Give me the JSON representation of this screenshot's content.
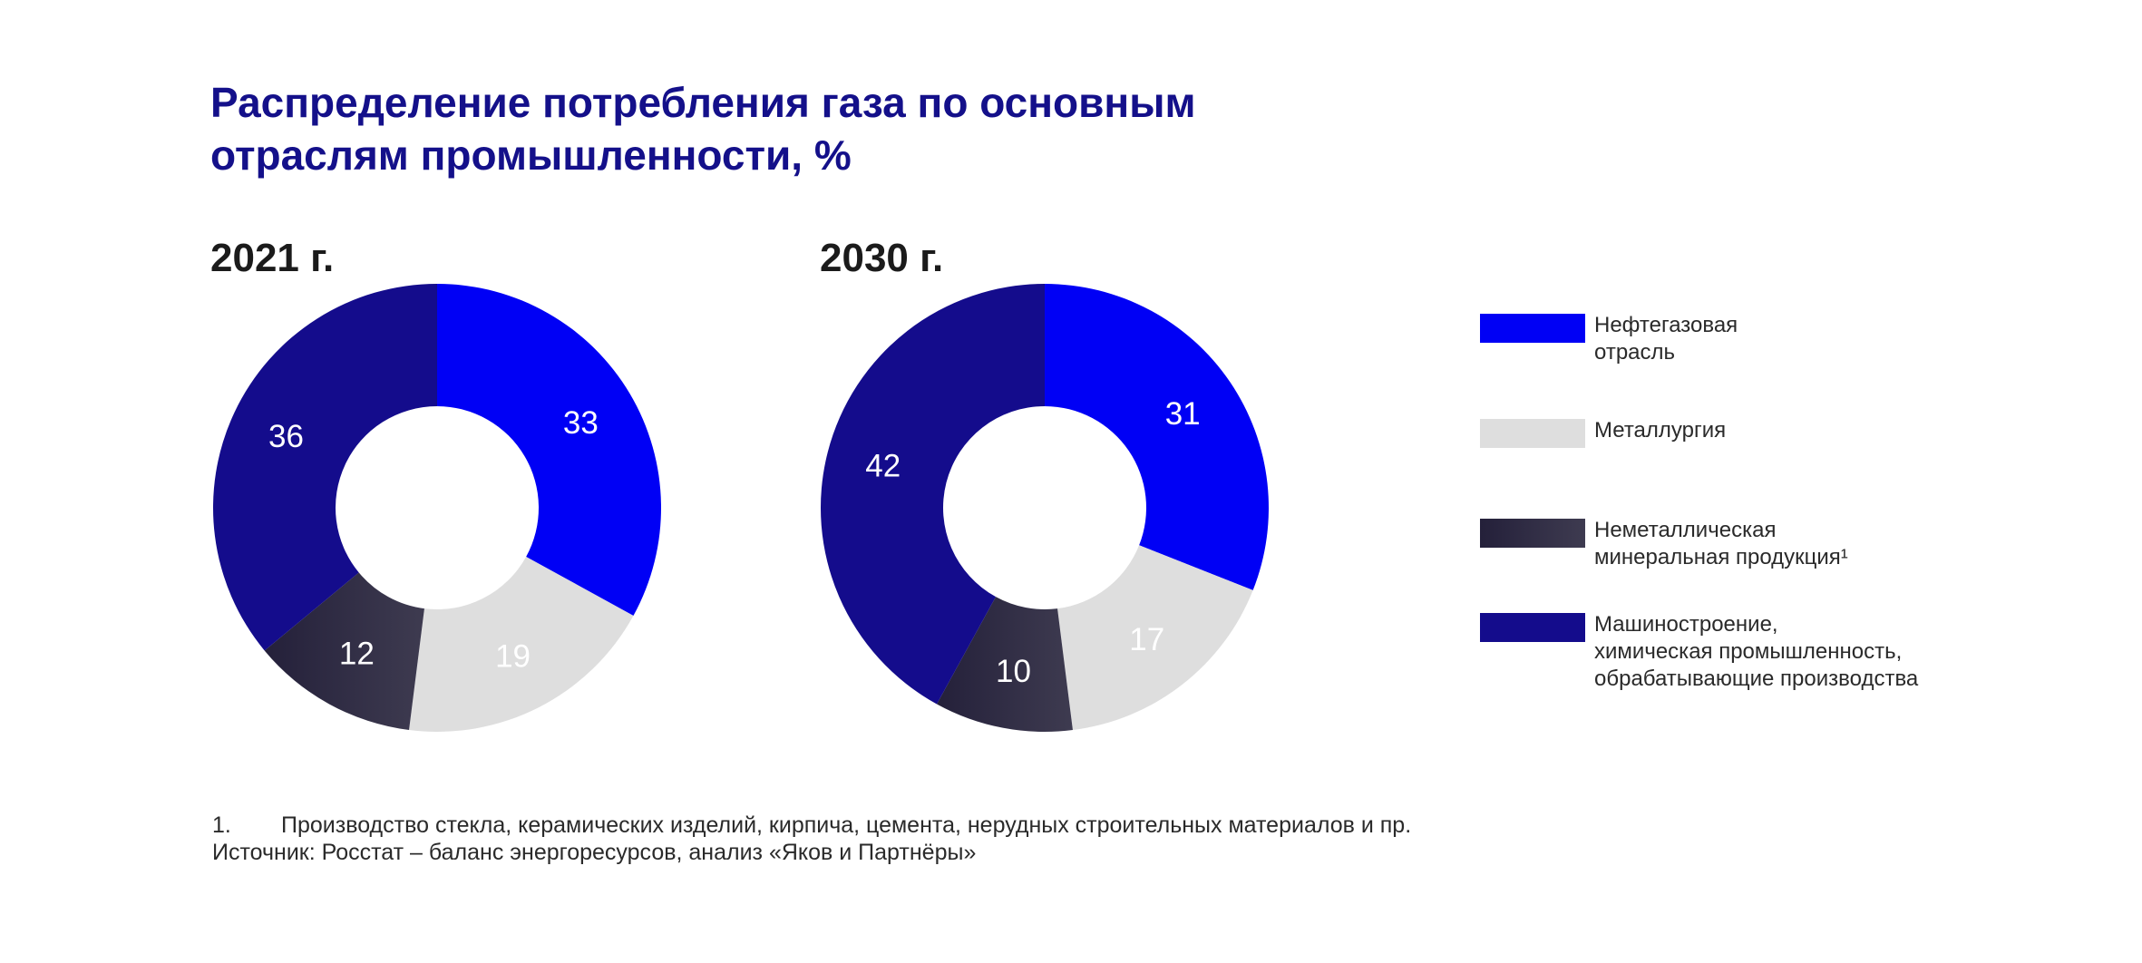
{
  "title": "Распределение потребления газа по основным отраслям промышленности, %",
  "colors": {
    "title": "#14108a",
    "oil_gas": "#0000f5",
    "metallurgy": "#dedede",
    "nonmetallic_start": "#24203a",
    "nonmetallic_end": "#3e3b50",
    "machinery": "#140c8c"
  },
  "chart_data": [
    {
      "type": "pie",
      "title": "2021 г.",
      "categories": [
        "Нефтегазовая отрасль",
        "Металлургия",
        "Неметаллическая минеральная продукция¹",
        "Машиностроение, химическая промышленность, обрабатывающие производства"
      ],
      "values": [
        33,
        19,
        12,
        36
      ],
      "labels": [
        "33",
        "19",
        "12",
        "36"
      ]
    },
    {
      "type": "pie",
      "title": "2030 г.",
      "categories": [
        "Нефтегазовая отрасль",
        "Металлургия",
        "Неметаллическая минеральная продукция¹",
        "Машиностроение, химическая промышленность, обрабатывающие производства"
      ],
      "values": [
        31,
        17,
        10,
        42
      ],
      "labels": [
        "31",
        "17",
        "10",
        "42"
      ]
    }
  ],
  "legend": [
    {
      "label": "Нефтегазовая\nотрасль",
      "color_key": "oil_gas"
    },
    {
      "label": "Металлургия",
      "color_key": "metallurgy"
    },
    {
      "label": "Неметаллическая\nминеральная продукция¹",
      "color_key": "nonmetallic"
    },
    {
      "label": "Машиностроение,\nхимическая промышленность,\nобрабатывающие производства",
      "color_key": "machinery"
    }
  ],
  "footnote": {
    "number": "1.",
    "text": "Производство стекла, керамических изделий, кирпича, цемента, нерудных строительных материалов и пр."
  },
  "source": "Источник: Росстат – баланс энергоресурсов, анализ «Яков и Партнёры»"
}
